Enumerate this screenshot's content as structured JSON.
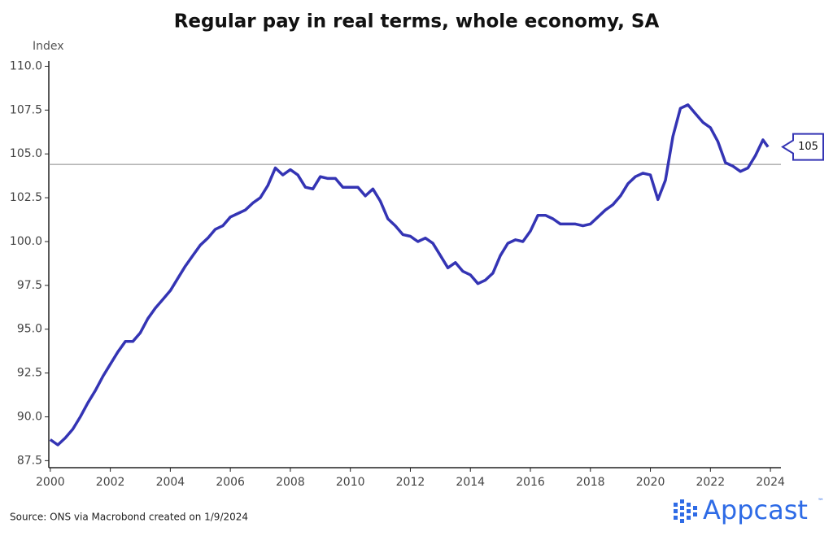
{
  "chart_data": {
    "type": "line",
    "title": "Regular pay in real terms, whole economy, SA",
    "y_axis_label": "Index",
    "source": "Source: ONS via Macrobond created on 1/9/2024",
    "brand": "Appcast",
    "brand_mark": "™",
    "xlim": [
      1999.95,
      2024.35
    ],
    "ylim": [
      87.1,
      110.3
    ],
    "xticks": [
      2000,
      2002,
      2004,
      2006,
      2008,
      2010,
      2012,
      2014,
      2016,
      2018,
      2020,
      2022,
      2024
    ],
    "yticks": [
      {
        "value": 87.5,
        "label": "87.5"
      },
      {
        "value": 90,
        "label": "90.0"
      },
      {
        "value": 92.5,
        "label": "92.5"
      },
      {
        "value": 95,
        "label": "95.0"
      },
      {
        "value": 97.5,
        "label": "97.5"
      },
      {
        "value": 100,
        "label": "100.0"
      },
      {
        "value": 102.5,
        "label": "102.5"
      },
      {
        "value": 105,
        "label": "105.0"
      },
      {
        "value": 107.5,
        "label": "107.5"
      },
      {
        "value": 110,
        "label": "110.0"
      }
    ],
    "reference_line": 104.4,
    "x": [
      2000,
      2000.25,
      2000.5,
      2000.75,
      2001,
      2001.25,
      2001.5,
      2001.75,
      2002,
      2002.25,
      2002.5,
      2002.75,
      2003,
      2003.25,
      2003.5,
      2003.75,
      2004,
      2004.25,
      2004.5,
      2004.75,
      2005,
      2005.25,
      2005.5,
      2005.75,
      2006,
      2006.25,
      2006.5,
      2006.75,
      2007,
      2007.25,
      2007.5,
      2007.75,
      2008,
      2008.25,
      2008.5,
      2008.75,
      2009,
      2009.25,
      2009.5,
      2009.75,
      2010,
      2010.25,
      2010.5,
      2010.75,
      2011,
      2011.25,
      2011.5,
      2011.75,
      2012,
      2012.25,
      2012.5,
      2012.75,
      2013,
      2013.25,
      2013.5,
      2013.75,
      2014,
      2014.25,
      2014.5,
      2014.75,
      2015,
      2015.25,
      2015.5,
      2015.75,
      2016,
      2016.25,
      2016.5,
      2016.75,
      2017,
      2017.25,
      2017.5,
      2017.75,
      2018,
      2018.25,
      2018.5,
      2018.75,
      2019,
      2019.25,
      2019.5,
      2019.75,
      2020,
      2020.25,
      2020.5,
      2020.75,
      2021,
      2021.25,
      2021.5,
      2021.75,
      2022,
      2022.25,
      2022.5,
      2022.75,
      2023,
      2023.25,
      2023.5,
      2023.75,
      2023.92
    ],
    "series": [
      {
        "name": "Regular pay in real terms",
        "color": "#3434b4",
        "values": [
          88.7,
          88.4,
          88.8,
          89.3,
          90.0,
          90.8,
          91.5,
          92.3,
          93.0,
          93.7,
          94.3,
          94.3,
          94.8,
          95.6,
          96.2,
          96.7,
          97.2,
          97.9,
          98.6,
          99.2,
          99.8,
          100.2,
          100.7,
          100.9,
          101.4,
          101.6,
          101.8,
          102.2,
          102.5,
          103.2,
          104.2,
          103.8,
          104.1,
          103.8,
          103.1,
          103.0,
          103.7,
          103.6,
          103.6,
          103.1,
          103.1,
          103.1,
          102.6,
          103.0,
          102.3,
          101.3,
          100.9,
          100.4,
          100.3,
          100.0,
          100.2,
          99.9,
          99.2,
          98.5,
          98.8,
          98.3,
          98.1,
          97.6,
          97.8,
          98.2,
          99.2,
          99.9,
          100.1,
          100.0,
          100.6,
          101.5,
          101.5,
          101.3,
          101.0,
          101.0,
          101.0,
          100.9,
          101.0,
          101.4,
          101.8,
          102.1,
          102.6,
          103.3,
          103.7,
          103.9,
          103.8,
          102.4,
          103.5,
          106.0,
          107.6,
          107.8,
          107.3,
          106.8,
          106.5,
          105.7,
          104.5,
          104.3,
          104.0,
          104.2,
          104.9,
          105.8,
          105.4
        ],
        "value_labels": [
          null,
          null,
          null,
          null,
          null,
          null,
          null,
          null,
          null,
          null,
          null,
          null,
          null,
          null,
          null,
          null,
          null,
          null,
          null,
          null,
          null,
          null,
          null,
          null,
          null,
          null,
          null,
          null,
          null,
          null,
          null,
          null,
          null,
          null,
          null,
          null,
          null,
          null,
          null,
          null,
          null,
          null,
          null,
          null,
          null,
          null,
          null,
          null,
          null,
          null,
          null,
          null,
          null,
          null,
          null,
          null,
          null,
          null,
          null,
          null,
          null,
          null,
          null,
          null,
          null,
          null,
          null,
          null,
          null,
          null,
          null,
          null,
          null,
          null,
          null,
          null,
          null,
          null,
          null,
          null,
          null,
          null,
          null,
          null,
          null,
          null,
          null,
          null,
          null,
          null,
          null,
          null,
          null,
          null,
          null,
          null,
          "105"
        ]
      }
    ]
  }
}
